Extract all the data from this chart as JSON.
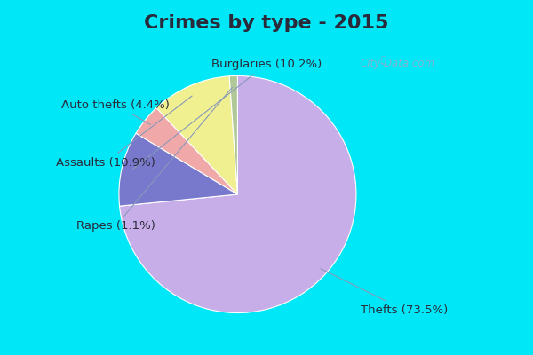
{
  "title": "Crimes by type - 2015",
  "slices": [
    {
      "label": "Thefts (73.5%)",
      "value": 73.5,
      "color": "#c8aee8"
    },
    {
      "label": "Burglaries (10.2%)",
      "value": 10.2,
      "color": "#7878cc"
    },
    {
      "label": "Auto thefts (4.4%)",
      "value": 4.4,
      "color": "#f0a8a8"
    },
    {
      "label": "Assaults (10.9%)",
      "value": 10.9,
      "color": "#f0f090"
    },
    {
      "label": "Rapes (1.1%)",
      "value": 1.1,
      "color": "#b0c898"
    }
  ],
  "background_top": "#00e8f8",
  "background_main_top": "#d8eeec",
  "background_main_bottom": "#c0e8c8",
  "title_fontsize": 16,
  "label_fontsize": 9.5,
  "watermark": "City-Data.com",
  "title_color": "#2a2a3a",
  "label_color": "#2a2a3a"
}
